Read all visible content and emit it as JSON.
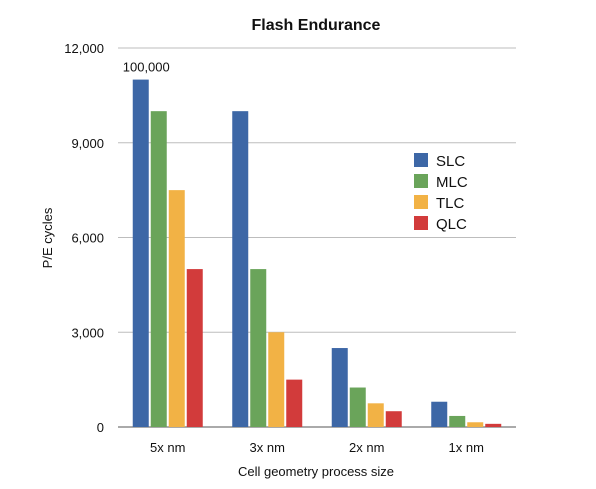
{
  "chart_data": {
    "type": "bar",
    "title": "Flash Endurance",
    "xlabel": "Cell geometry process size",
    "ylabel": "P/E cycles",
    "categories": [
      "5x nm",
      "3x nm",
      "2x nm",
      "1x nm"
    ],
    "ylim": [
      0,
      12000
    ],
    "yticks": [
      0,
      3000,
      6000,
      9000,
      12000
    ],
    "ytick_labels": [
      "0",
      "3,000",
      "6,000",
      "9,000",
      "12,000"
    ],
    "grid": true,
    "legend_position": "right",
    "series": [
      {
        "name": "SLC",
        "color": "#3d67a6",
        "values": [
          11000,
          10000,
          2500,
          800
        ]
      },
      {
        "name": "MLC",
        "color": "#6aa45a",
        "values": [
          10000,
          5000,
          1250,
          350
        ]
      },
      {
        "name": "TLC",
        "color": "#f2b245",
        "values": [
          7500,
          3000,
          750,
          150
        ]
      },
      {
        "name": "QLC",
        "color": "#d23b3b",
        "values": [
          5000,
          1500,
          500,
          100
        ]
      }
    ],
    "annotations": [
      {
        "text": "100,000",
        "category": "5x nm",
        "series": "SLC"
      }
    ]
  }
}
